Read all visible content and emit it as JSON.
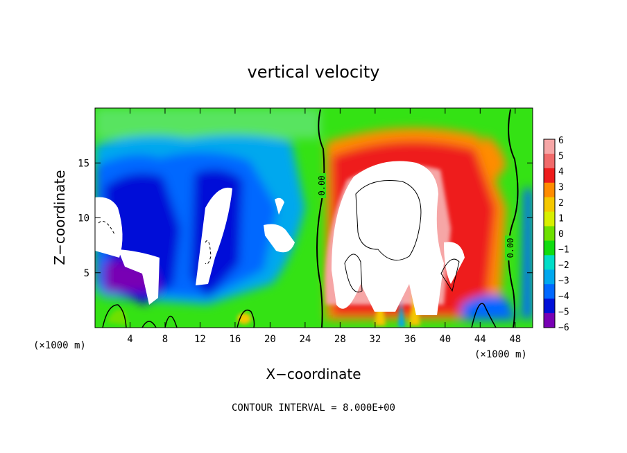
{
  "chart_data": {
    "type": "heatmap",
    "title": "vertical velocity",
    "xlabel": "X−coordinate",
    "ylabel": "Z−coordinate",
    "x_unit_left": "(×1000 m)",
    "x_unit_right": "(×1000 m)",
    "xlim": [
      0,
      50
    ],
    "ylim": [
      0,
      20
    ],
    "x_ticks": [
      4,
      8,
      12,
      16,
      20,
      24,
      28,
      32,
      36,
      40,
      44,
      48
    ],
    "y_ticks": [
      5,
      10,
      15
    ],
    "colorbar": {
      "levels": [
        6,
        5,
        4,
        3,
        2,
        1,
        0,
        -1,
        -2,
        -3,
        -4,
        -5,
        -6
      ],
      "labels": [
        "6",
        "5",
        "4",
        "3",
        "2",
        "1",
        "0",
        "−1",
        "−2",
        "−3",
        "−4",
        "−5",
        "−6"
      ],
      "colors": [
        "#f6a6a6",
        "#f06a6a",
        "#ee1c1c",
        "#ff8c00",
        "#f5c800",
        "#d8ef00",
        "#6ee000",
        "#10dc10",
        "#00ddc8",
        "#00a8ee",
        "#0068ff",
        "#0010d8",
        "#7800b4"
      ]
    },
    "contour_labels": [
      "0.00",
      "0.00"
    ],
    "note": "CONTOUR INTERVAL = 8.000E+00",
    "field_colors": {
      "background": "#34e214",
      "downdraft": "#1040f0",
      "updraft": "#ff2a10",
      "saturated": "#ffffff"
    }
  }
}
